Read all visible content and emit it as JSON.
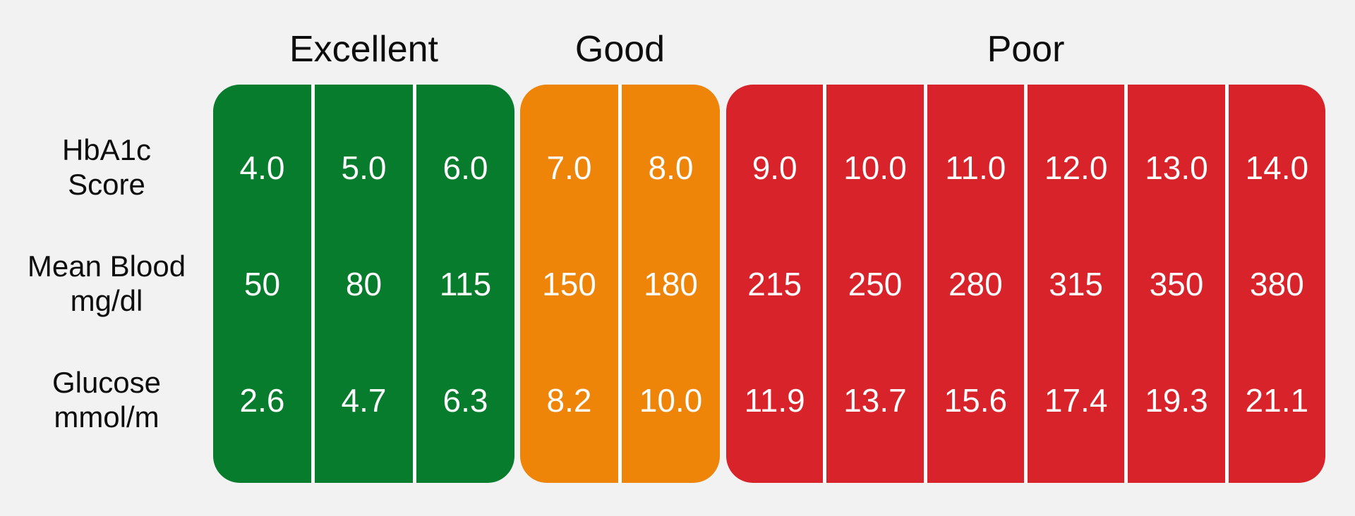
{
  "colors": {
    "background": "#f3f2f2",
    "excellent_green": "#077c2d",
    "good_orange": "#ee8408",
    "poor_red": "#d8232a",
    "separator_white": "#ffffff",
    "label_text": "#0d0d0d",
    "value_text": "#ffffff"
  },
  "row_labels": [
    "HbA1c\nScore",
    "Mean Blood\nmg/dl",
    "Glucose\nmmol/m"
  ],
  "groups": [
    {
      "label": "Excellent",
      "color": "#077c2d",
      "columns": [
        [
          "4.0",
          "50",
          "2.6"
        ],
        [
          "5.0",
          "80",
          "4.7"
        ],
        [
          "6.0",
          "115",
          "6.3"
        ]
      ]
    },
    {
      "label": "Good",
      "color": "#ee8408",
      "columns": [
        [
          "7.0",
          "150",
          "8.2"
        ],
        [
          "8.0",
          "180",
          "10.0"
        ]
      ]
    },
    {
      "label": "Poor",
      "color": "#d8232a",
      "columns": [
        [
          "9.0",
          "215",
          "11.9"
        ],
        [
          "10.0",
          "250",
          "13.7"
        ],
        [
          "11.0",
          "280",
          "15.6"
        ],
        [
          "12.0",
          "315",
          "17.4"
        ],
        [
          "13.0",
          "350",
          "19.3"
        ],
        [
          "14.0",
          "380",
          "21.1"
        ]
      ]
    }
  ],
  "chart_data": {
    "type": "table",
    "title": "",
    "band_headers": [
      "Excellent",
      "Good",
      "Poor"
    ],
    "band_ranges_hba1c": {
      "Excellent": [
        4.0,
        6.0
      ],
      "Good": [
        7.0,
        8.0
      ],
      "Poor": [
        9.0,
        14.0
      ]
    },
    "rows": [
      "HbA1c Score",
      "Mean Blood mg/dl",
      "Glucose mmol/m"
    ],
    "hba1c_score": [
      4.0,
      5.0,
      6.0,
      7.0,
      8.0,
      9.0,
      10.0,
      11.0,
      12.0,
      13.0,
      14.0
    ],
    "mean_blood_mg_dl": [
      50,
      80,
      115,
      150,
      180,
      215,
      250,
      280,
      315,
      350,
      380
    ],
    "glucose_mmol": [
      2.6,
      4.7,
      6.3,
      8.2,
      10.0,
      11.9,
      13.7,
      15.6,
      17.4,
      19.3,
      21.1
    ],
    "legend_position": "top",
    "grid": false
  }
}
